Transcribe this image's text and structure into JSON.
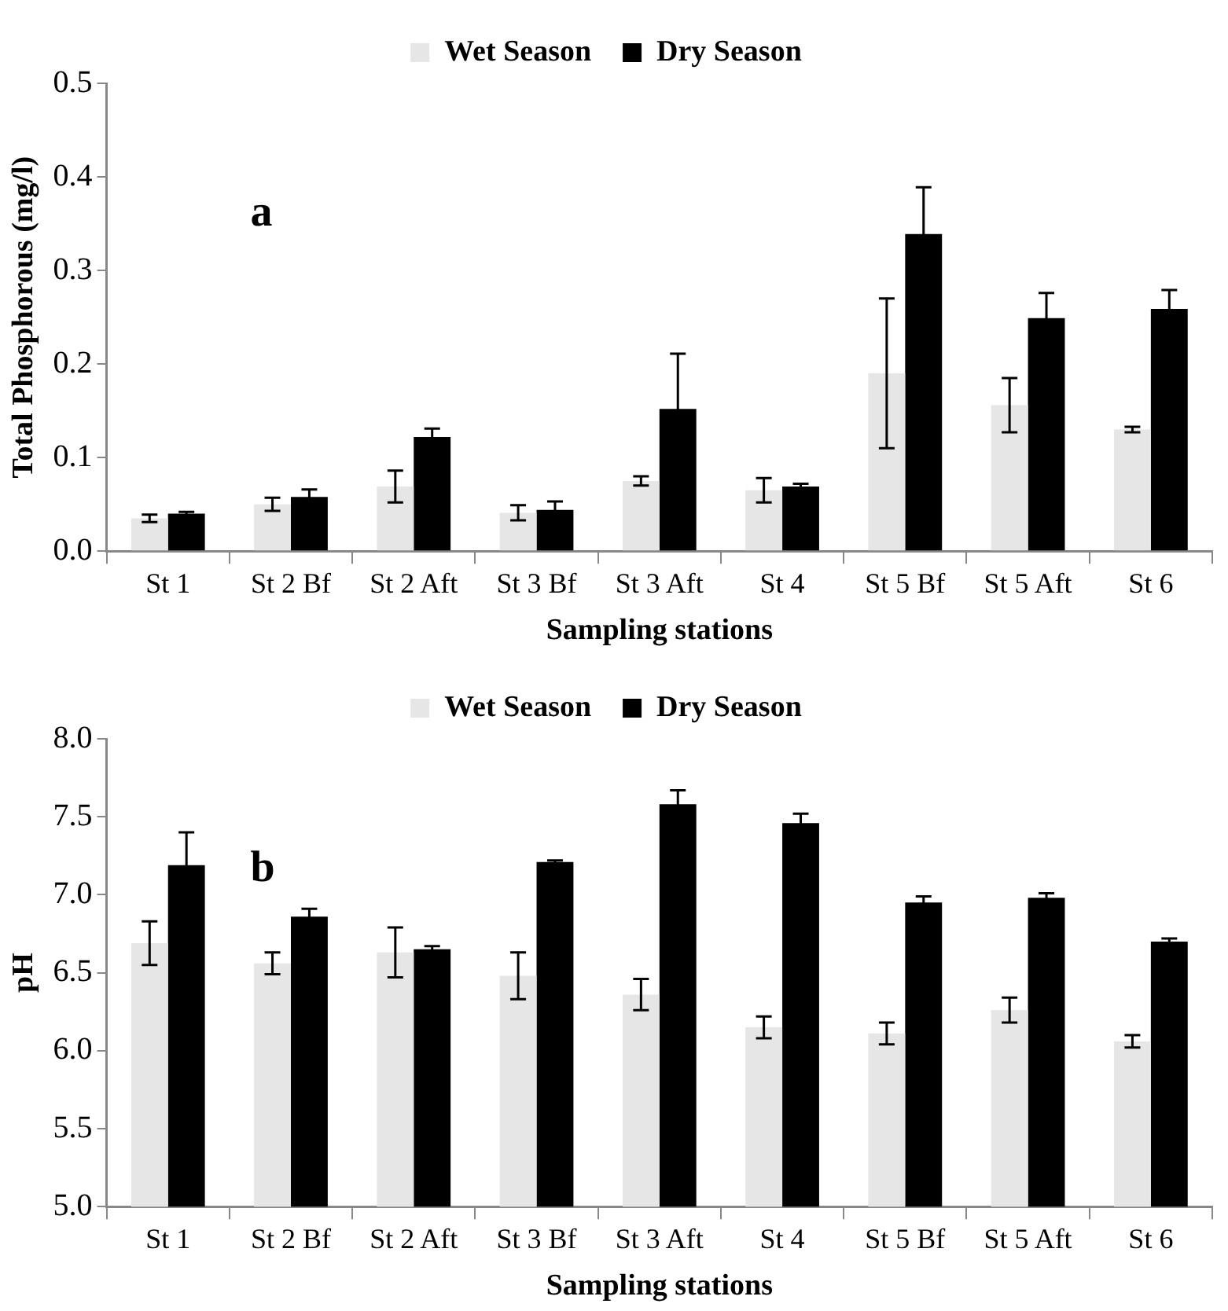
{
  "chart_data": [
    {
      "type": "bar",
      "categories": [
        "St 1",
        "St 2 Bf",
        "St 2 Aft",
        "St 3 Bf",
        "St 3 Aft",
        "St 4",
        "St 5 Bf",
        "St 5 Aft",
        "St 6"
      ],
      "xlabel": "Sampling stations",
      "ylabel": "Total Phosphorous (mg/l)",
      "ylim": [
        0,
        0.5
      ],
      "yticks": [
        {
          "value": 0,
          "label": "0.0"
        },
        0.1,
        0.2,
        0.3,
        0.4,
        0.5
      ],
      "legend": "top",
      "grid": false,
      "annotations": [
        "a"
      ],
      "series": [
        {
          "name": "Wet Season",
          "color": "#e6e6e6",
          "values": [
            0.035,
            0.05,
            0.069,
            0.041,
            0.075,
            0.065,
            0.19,
            0.156,
            0.13
          ],
          "errors": [
            0.004,
            0.007,
            0.017,
            0.008,
            0.005,
            0.013,
            0.08,
            0.029,
            0.003
          ]
        },
        {
          "name": "Dry Season",
          "color": "#000000",
          "values": [
            0.04,
            0.058,
            0.122,
            0.044,
            0.152,
            0.069,
            0.339,
            0.249,
            0.259
          ],
          "errors": [
            0.002,
            0.008,
            0.009,
            0.009,
            0.059,
            0.003,
            0.05,
            0.027,
            0.02
          ]
        }
      ]
    },
    {
      "type": "bar",
      "categories": [
        "St 1",
        "St 2 Bf",
        "St 2 Aft",
        "St 3 Bf",
        "St 3 Aft",
        "St 4",
        "St 5 Bf",
        "St 5 Aft",
        "St 6"
      ],
      "xlabel": "Sampling stations",
      "ylabel": "pH",
      "ylim": [
        5,
        8
      ],
      "yticks": [
        {
          "value": 5,
          "label": "5.0"
        },
        5.5,
        {
          "value": 6,
          "label": "6.0"
        },
        6.5,
        {
          "value": 7,
          "label": "7.0"
        },
        7.5,
        {
          "value": 8,
          "label": "8.0"
        }
      ],
      "legend": "top",
      "grid": false,
      "annotations": [
        "b"
      ],
      "series": [
        {
          "name": "Wet Season",
          "color": "#e6e6e6",
          "values": [
            6.69,
            6.56,
            6.63,
            6.48,
            6.36,
            6.15,
            6.11,
            6.26,
            6.06
          ],
          "errors": [
            0.14,
            0.07,
            0.16,
            0.15,
            0.1,
            0.07,
            0.07,
            0.08,
            0.04
          ]
        },
        {
          "name": "Dry Season",
          "color": "#000000",
          "values": [
            7.19,
            6.86,
            6.65,
            7.21,
            7.58,
            7.46,
            6.95,
            6.98,
            6.7
          ],
          "errors": [
            0.21,
            0.05,
            0.02,
            0.01,
            0.09,
            0.06,
            0.04,
            0.03,
            0.02
          ]
        }
      ]
    }
  ]
}
